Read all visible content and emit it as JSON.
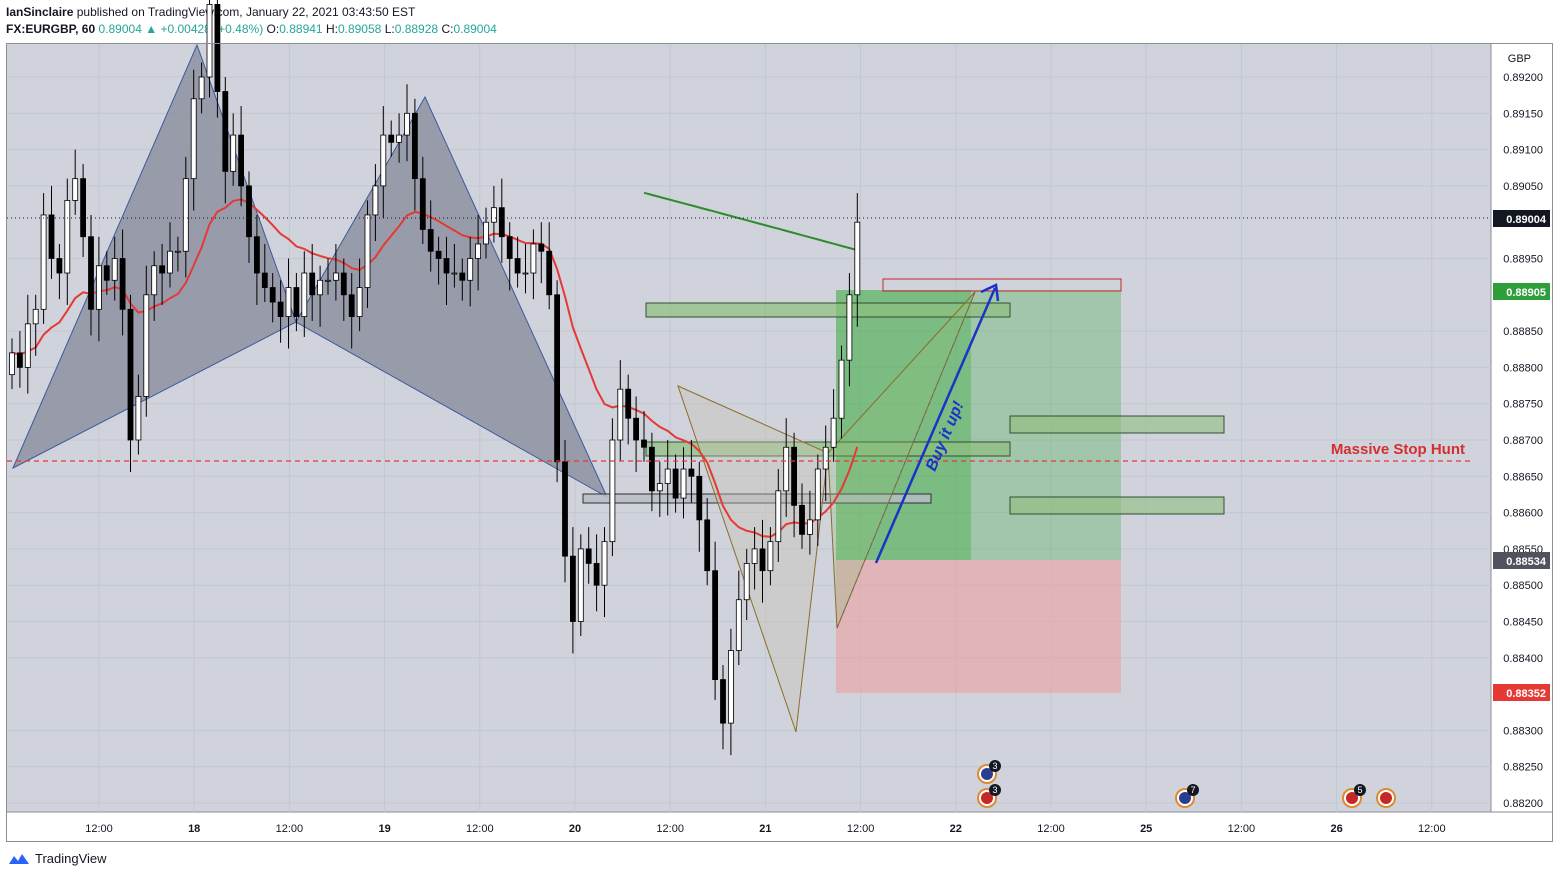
{
  "header": {
    "author": "IanSinclaire",
    "published": "published on TradingView.com, January 22, 2021 03:43:50 EST",
    "symbol": "FX:EURGBP, 60",
    "last": "0.89004",
    "change": "+0.00428 (+0.48%)",
    "o_label": "O:",
    "o": "0.88941",
    "h_label": "H:",
    "h": "0.89058",
    "l_label": "L:",
    "l": "0.88928",
    "c_label": "C:",
    "c": "0.89004"
  },
  "footer": {
    "brand": "TradingView"
  },
  "colors": {
    "bg": "#d0d3dc",
    "up": "#ffffff",
    "down": "#000000",
    "ema_fast": "#e53935",
    "ema_slow": "#2e8b2e",
    "harmonic": "#3d5a99",
    "abcd": "#8b6d2a",
    "arrow": "#1b33c8",
    "profit": "#4caf50",
    "stop": "#e57373",
    "stophunt": "#e53935"
  },
  "chart_data": {
    "type": "candlestick",
    "currency": "GBP",
    "price_axis": {
      "ticks": [
        "0.89200",
        "0.89150",
        "0.89100",
        "0.89050",
        "0.88950",
        "0.88850",
        "0.88800",
        "0.88750",
        "0.88700",
        "0.88650",
        "0.88600",
        "0.88550",
        "0.88500",
        "0.88450",
        "0.88400",
        "0.88300",
        "0.88250",
        "0.88200"
      ],
      "ylim": [
        0.8818,
        0.8923
      ]
    },
    "time_axis": {
      "ticks": [
        "12:00",
        "18",
        "12:00",
        "19",
        "12:00",
        "20",
        "12:00",
        "21",
        "12:00",
        "22",
        "12:00",
        "25",
        "12:00",
        "26",
        "12:00"
      ]
    },
    "price_labels": {
      "last": "0.89004",
      "target": "0.88905",
      "entry": "0.88534",
      "stop": "0.88352"
    },
    "annotations": {
      "stop_hunt": "Massive Stop Hunt",
      "buy": "Buy it up!"
    },
    "events": [
      {
        "count": "3"
      },
      {
        "count": "3"
      },
      {
        "count": "7"
      },
      {
        "count": "5"
      }
    ],
    "series_close": [
      0.8882,
      0.888,
      0.8886,
      0.8888,
      0.8901,
      0.8895,
      0.8893,
      0.8903,
      0.8906,
      0.8898,
      0.8888,
      0.8894,
      0.8892,
      0.8895,
      0.8888,
      0.887,
      0.8876,
      0.889,
      0.8894,
      0.8893,
      0.8896,
      0.8896,
      0.8906,
      0.8917,
      0.892,
      0.893,
      0.8918,
      0.8907,
      0.8912,
      0.8905,
      0.8898,
      0.8893,
      0.8891,
      0.8889,
      0.8887,
      0.8891,
      0.8887,
      0.8893,
      0.889,
      0.8892,
      0.8892,
      0.8893,
      0.889,
      0.8887,
      0.8891,
      0.8901,
      0.8905,
      0.8912,
      0.8911,
      0.8912,
      0.8915,
      0.8906,
      0.8899,
      0.8896,
      0.8895,
      0.8893,
      0.8893,
      0.8892,
      0.8895,
      0.8897,
      0.89,
      0.8902,
      0.8898,
      0.8895,
      0.8893,
      0.8893,
      0.8897,
      0.8896,
      0.889,
      0.8867,
      0.8854,
      0.8845,
      0.8855,
      0.8853,
      0.885,
      0.8856,
      0.887,
      0.8877,
      0.8873,
      0.887,
      0.8869,
      0.8863,
      0.8864,
      0.8866,
      0.8862,
      0.8866,
      0.8865,
      0.8859,
      0.8852,
      0.8837,
      0.8831,
      0.8841,
      0.8848,
      0.8853,
      0.8855,
      0.8852,
      0.8856,
      0.8863,
      0.8869,
      0.8861,
      0.8857,
      0.8859,
      0.8866,
      0.8869,
      0.8873,
      0.8881,
      0.889,
      0.89
    ]
  }
}
